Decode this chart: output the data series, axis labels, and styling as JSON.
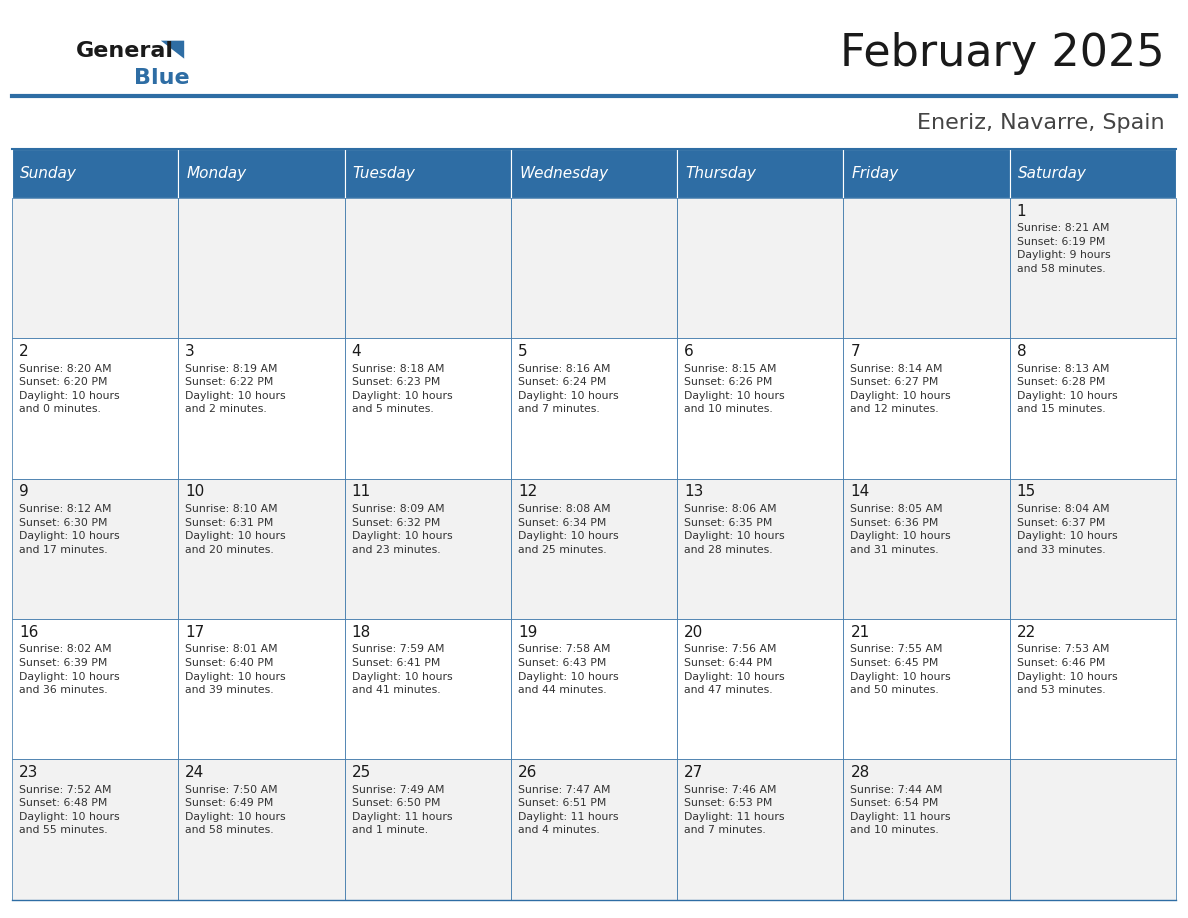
{
  "title": "February 2025",
  "subtitle": "Eneriz, Navarre, Spain",
  "header_bg": "#2E6DA4",
  "header_text_color": "#FFFFFF",
  "cell_bg_light": "#F2F2F2",
  "cell_bg_white": "#FFFFFF",
  "border_color": "#2E6DA4",
  "day_headers": [
    "Sunday",
    "Monday",
    "Tuesday",
    "Wednesday",
    "Thursday",
    "Friday",
    "Saturday"
  ],
  "logo_color1": "#1a1a1a",
  "logo_color2": "#2E6DA4",
  "weeks": [
    [
      {
        "day": null,
        "info": null
      },
      {
        "day": null,
        "info": null
      },
      {
        "day": null,
        "info": null
      },
      {
        "day": null,
        "info": null
      },
      {
        "day": null,
        "info": null
      },
      {
        "day": null,
        "info": null
      },
      {
        "day": 1,
        "info": "Sunrise: 8:21 AM\nSunset: 6:19 PM\nDaylight: 9 hours\nand 58 minutes."
      }
    ],
    [
      {
        "day": 2,
        "info": "Sunrise: 8:20 AM\nSunset: 6:20 PM\nDaylight: 10 hours\nand 0 minutes."
      },
      {
        "day": 3,
        "info": "Sunrise: 8:19 AM\nSunset: 6:22 PM\nDaylight: 10 hours\nand 2 minutes."
      },
      {
        "day": 4,
        "info": "Sunrise: 8:18 AM\nSunset: 6:23 PM\nDaylight: 10 hours\nand 5 minutes."
      },
      {
        "day": 5,
        "info": "Sunrise: 8:16 AM\nSunset: 6:24 PM\nDaylight: 10 hours\nand 7 minutes."
      },
      {
        "day": 6,
        "info": "Sunrise: 8:15 AM\nSunset: 6:26 PM\nDaylight: 10 hours\nand 10 minutes."
      },
      {
        "day": 7,
        "info": "Sunrise: 8:14 AM\nSunset: 6:27 PM\nDaylight: 10 hours\nand 12 minutes."
      },
      {
        "day": 8,
        "info": "Sunrise: 8:13 AM\nSunset: 6:28 PM\nDaylight: 10 hours\nand 15 minutes."
      }
    ],
    [
      {
        "day": 9,
        "info": "Sunrise: 8:12 AM\nSunset: 6:30 PM\nDaylight: 10 hours\nand 17 minutes."
      },
      {
        "day": 10,
        "info": "Sunrise: 8:10 AM\nSunset: 6:31 PM\nDaylight: 10 hours\nand 20 minutes."
      },
      {
        "day": 11,
        "info": "Sunrise: 8:09 AM\nSunset: 6:32 PM\nDaylight: 10 hours\nand 23 minutes."
      },
      {
        "day": 12,
        "info": "Sunrise: 8:08 AM\nSunset: 6:34 PM\nDaylight: 10 hours\nand 25 minutes."
      },
      {
        "day": 13,
        "info": "Sunrise: 8:06 AM\nSunset: 6:35 PM\nDaylight: 10 hours\nand 28 minutes."
      },
      {
        "day": 14,
        "info": "Sunrise: 8:05 AM\nSunset: 6:36 PM\nDaylight: 10 hours\nand 31 minutes."
      },
      {
        "day": 15,
        "info": "Sunrise: 8:04 AM\nSunset: 6:37 PM\nDaylight: 10 hours\nand 33 minutes."
      }
    ],
    [
      {
        "day": 16,
        "info": "Sunrise: 8:02 AM\nSunset: 6:39 PM\nDaylight: 10 hours\nand 36 minutes."
      },
      {
        "day": 17,
        "info": "Sunrise: 8:01 AM\nSunset: 6:40 PM\nDaylight: 10 hours\nand 39 minutes."
      },
      {
        "day": 18,
        "info": "Sunrise: 7:59 AM\nSunset: 6:41 PM\nDaylight: 10 hours\nand 41 minutes."
      },
      {
        "day": 19,
        "info": "Sunrise: 7:58 AM\nSunset: 6:43 PM\nDaylight: 10 hours\nand 44 minutes."
      },
      {
        "day": 20,
        "info": "Sunrise: 7:56 AM\nSunset: 6:44 PM\nDaylight: 10 hours\nand 47 minutes."
      },
      {
        "day": 21,
        "info": "Sunrise: 7:55 AM\nSunset: 6:45 PM\nDaylight: 10 hours\nand 50 minutes."
      },
      {
        "day": 22,
        "info": "Sunrise: 7:53 AM\nSunset: 6:46 PM\nDaylight: 10 hours\nand 53 minutes."
      }
    ],
    [
      {
        "day": 23,
        "info": "Sunrise: 7:52 AM\nSunset: 6:48 PM\nDaylight: 10 hours\nand 55 minutes."
      },
      {
        "day": 24,
        "info": "Sunrise: 7:50 AM\nSunset: 6:49 PM\nDaylight: 10 hours\nand 58 minutes."
      },
      {
        "day": 25,
        "info": "Sunrise: 7:49 AM\nSunset: 6:50 PM\nDaylight: 11 hours\nand 1 minute."
      },
      {
        "day": 26,
        "info": "Sunrise: 7:47 AM\nSunset: 6:51 PM\nDaylight: 11 hours\nand 4 minutes."
      },
      {
        "day": 27,
        "info": "Sunrise: 7:46 AM\nSunset: 6:53 PM\nDaylight: 11 hours\nand 7 minutes."
      },
      {
        "day": 28,
        "info": "Sunrise: 7:44 AM\nSunset: 6:54 PM\nDaylight: 11 hours\nand 10 minutes."
      },
      {
        "day": null,
        "info": null
      }
    ]
  ]
}
